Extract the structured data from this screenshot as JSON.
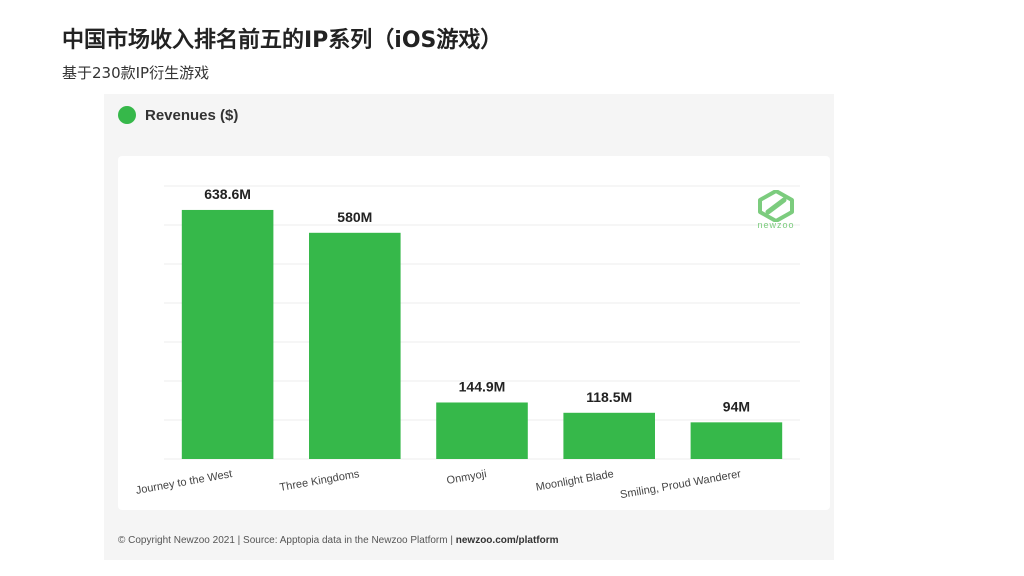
{
  "page": {
    "title": "中国市场收入排名前五的IP系列（iOS游戏）",
    "subtitle": "基于230款IP衍生游戏"
  },
  "legend": {
    "label": "Revenues ($)",
    "color": "#36b84a"
  },
  "logo": {
    "text": "newzoo",
    "icon": "newzoo-logo-icon",
    "color": "#7ccc7e"
  },
  "footer": {
    "text": "© Copyright Newzoo 2021 | Source: Apptopia data in the Newzoo Platform | ",
    "link": "newzoo.com/platform"
  },
  "chart_data": {
    "type": "bar",
    "categories": [
      "Journey to the West",
      "Three Kingdoms",
      "Onmyoji",
      "Moonlight Blade",
      "Smiling, Proud Wanderer"
    ],
    "series": [
      {
        "name": "Revenues ($)",
        "values": [
          638.6,
          580,
          144.9,
          118.5,
          94
        ],
        "labels": [
          "638.6M",
          "580M",
          "144.9M",
          "118.5M",
          "94M"
        ],
        "color": "#36b84a"
      }
    ],
    "ylim": [
      0,
      700
    ],
    "grid": true,
    "legend": "top-left"
  }
}
